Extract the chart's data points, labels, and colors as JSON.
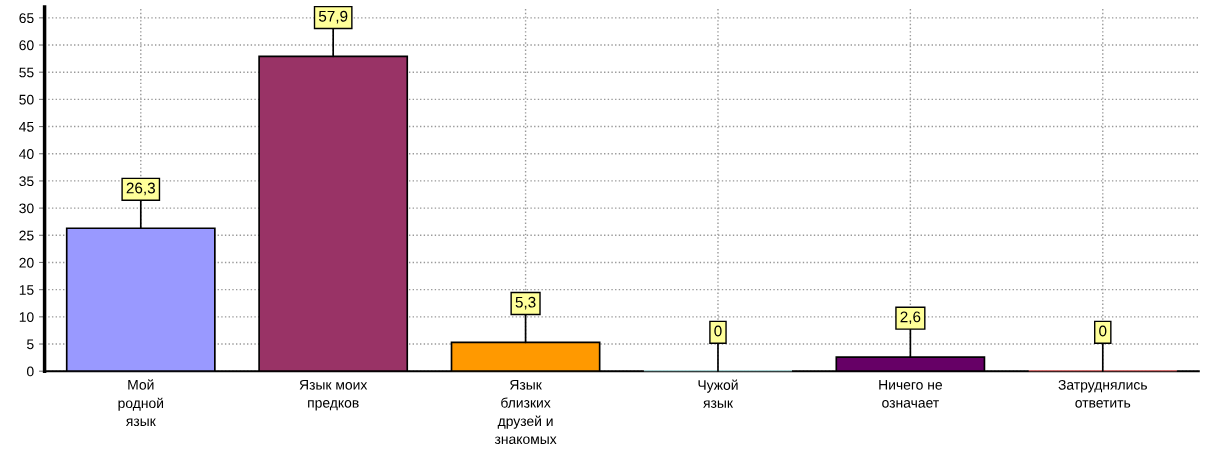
{
  "chart_data": {
    "type": "bar",
    "categories": [
      "Мой\nродной\nязык",
      "Язык моих\nпредков",
      "Язык\nблизких\nдрузей и\nзнакомых",
      "Чужой\nязык",
      "Ничего не\nозначает",
      "Затруднялись\nответить"
    ],
    "values": [
      26.3,
      57.9,
      5.3,
      0,
      2.6,
      0
    ],
    "value_labels": [
      "26,3",
      "57,9",
      "5,3",
      "0",
      "2,6",
      "0"
    ],
    "colors": [
      "#9999ff",
      "#993366",
      "#ff9900",
      "#ccffff",
      "#660066",
      "#ff8080"
    ],
    "ylim": [
      0,
      67
    ],
    "yticks": [
      0,
      5,
      10,
      15,
      20,
      25,
      30,
      35,
      40,
      45,
      50,
      55,
      60,
      65
    ],
    "grid": true,
    "legend": false
  }
}
